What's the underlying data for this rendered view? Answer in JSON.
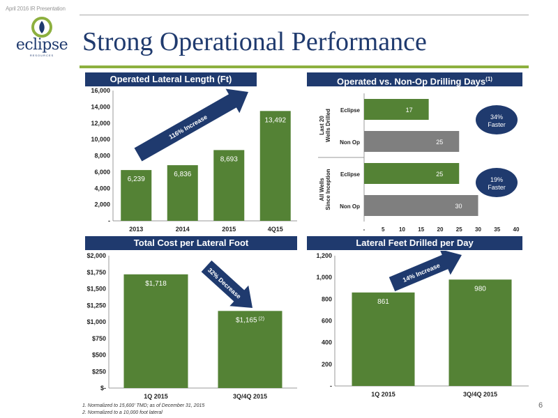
{
  "header": {
    "top_label": "April 2016 IR Presentation",
    "logo_text": "eclipse",
    "logo_sub": "RESOURCES",
    "title": "Strong Operational Performance",
    "page_number": "6"
  },
  "colors": {
    "navy": "#1f3a6e",
    "green": "#548235",
    "gray": "#7f7f7f",
    "accent": "#8db03f"
  },
  "footnotes": [
    "1.  Normalized to 15,600' TMD; as of December 31, 2015",
    "2.  Normalized to a 10,000 foot lateral"
  ],
  "chart_data": [
    {
      "id": "lateral-length",
      "type": "bar",
      "title": "Operated Lateral Length (Ft)",
      "categories": [
        "2013",
        "2014",
        "2015",
        "4Q15"
      ],
      "values": [
        6239,
        6836,
        8693,
        13492
      ],
      "value_labels": [
        "6,239",
        "6,836",
        "8,693",
        "13,492"
      ],
      "y_ticks": [
        0,
        2000,
        4000,
        6000,
        8000,
        10000,
        12000,
        14000,
        16000
      ],
      "y_tick_labels": [
        "-",
        "2,000",
        "4,000",
        "6,000",
        "8,000",
        "10,000",
        "12,000",
        "14,000",
        "16,000"
      ],
      "ylim": [
        0,
        16000
      ],
      "annotation": "116% Increase"
    },
    {
      "id": "drilling-days",
      "type": "bar",
      "orientation": "horizontal",
      "title": "Operated vs. Non-Op Drilling Days",
      "title_sup": "(1)",
      "groups": [
        {
          "label": "Last 20 Wells Drilled",
          "bars": [
            {
              "name": "Eclipse",
              "value": 17
            },
            {
              "name": "Non Op",
              "value": 25
            }
          ],
          "callout": "34% Faster"
        },
        {
          "label": "All Wells Since Inception",
          "bars": [
            {
              "name": "Eclipse",
              "value": 25
            },
            {
              "name": "Non Op",
              "value": 30
            }
          ],
          "callout": "19% Faster"
        }
      ],
      "x_ticks": [
        0,
        5,
        10,
        15,
        20,
        25,
        30,
        35,
        40
      ],
      "x_tick_labels": [
        "-",
        "5",
        "10",
        "15",
        "20",
        "25",
        "30",
        "35",
        "40"
      ],
      "xlim": [
        0,
        40
      ]
    },
    {
      "id": "cost-per-foot",
      "type": "bar",
      "title": "Total Cost per Lateral Foot",
      "categories": [
        "1Q 2015",
        "3Q/4Q 2015"
      ],
      "values": [
        1718,
        1165
      ],
      "value_labels": [
        "$1,718",
        "$1,165"
      ],
      "value_label_sup": [
        "",
        "(2)"
      ],
      "y_ticks": [
        0,
        250,
        500,
        750,
        1000,
        1250,
        1500,
        1750,
        2000
      ],
      "y_tick_labels": [
        "$-",
        "$250",
        "$500",
        "$750",
        "$1,000",
        "$1,250",
        "$1,500",
        "$1,750",
        "$2,000"
      ],
      "ylim": [
        0,
        2000
      ],
      "annotation": "32% Decrease"
    },
    {
      "id": "feet-per-day",
      "type": "bar",
      "title": "Lateral Feet Drilled per Day",
      "categories": [
        "1Q 2015",
        "3Q/4Q 2015"
      ],
      "values": [
        861,
        980
      ],
      "value_labels": [
        "861",
        "980"
      ],
      "y_ticks": [
        0,
        200,
        400,
        600,
        800,
        1000,
        1200
      ],
      "y_tick_labels": [
        "-",
        "200",
        "400",
        "600",
        "800",
        "1,000",
        "1,200"
      ],
      "ylim": [
        0,
        1200
      ],
      "annotation": "14% Increase"
    }
  ]
}
